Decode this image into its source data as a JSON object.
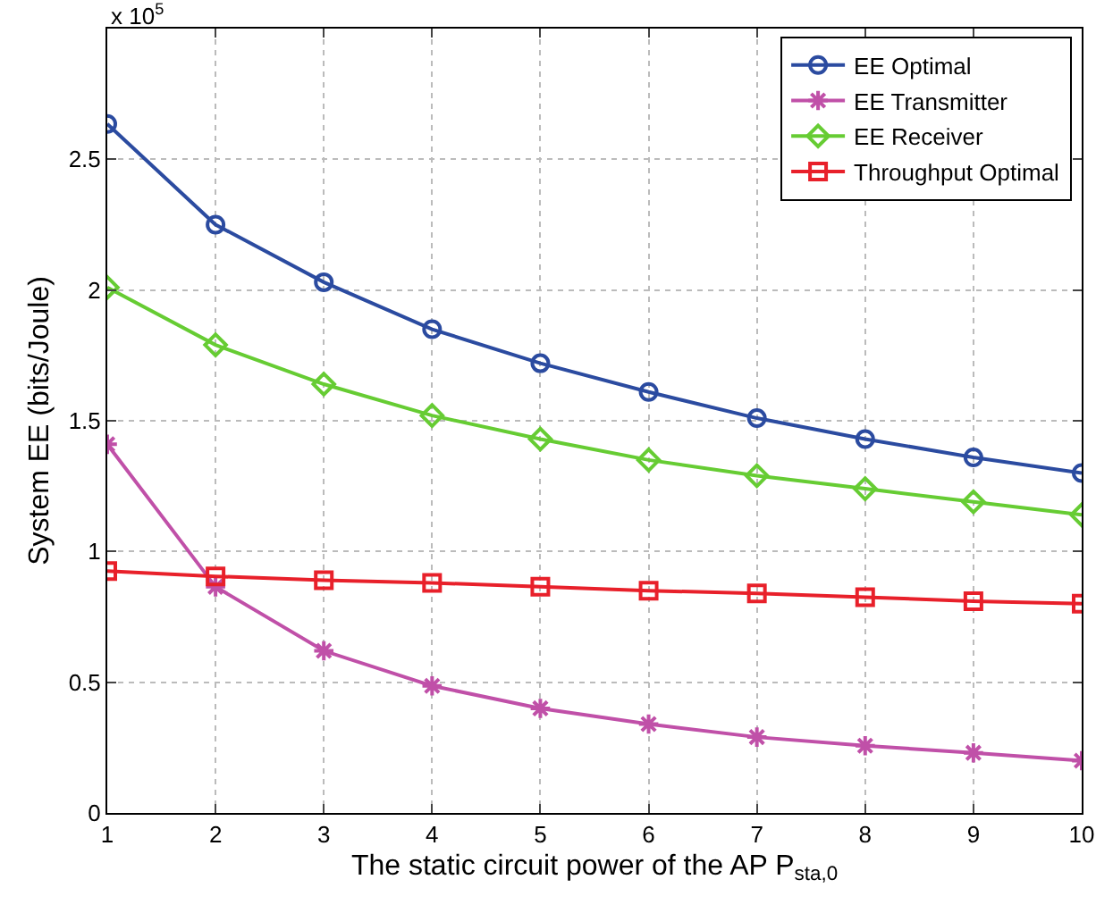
{
  "chart_data": {
    "type": "line",
    "xlabel": "The static circuit power of the AP P$_{sta,0}$",
    "ylabel": "System EE (bits/Joule)",
    "annotations": [
      "x 10$^{5}$"
    ],
    "x": [
      1,
      2,
      3,
      4,
      5,
      6,
      7,
      8,
      9,
      10
    ],
    "series": [
      {
        "name": "EE Optimal",
        "color": "#2b4ba0",
        "marker": "circle",
        "values": [
          2.635,
          2.25,
          2.03,
          1.85,
          1.72,
          1.61,
          1.51,
          1.43,
          1.36,
          1.3
        ]
      },
      {
        "name": "EE Transmitter",
        "color": "#c050a8",
        "marker": "cross",
        "values": [
          1.41,
          0.865,
          0.62,
          0.486,
          0.4,
          0.34,
          0.29,
          0.257,
          0.23,
          0.2
        ]
      },
      {
        "name": "EE Receiver",
        "color": "#66cc33",
        "marker": "diamond",
        "values": [
          2.01,
          1.79,
          1.64,
          1.52,
          1.43,
          1.35,
          1.29,
          1.24,
          1.19,
          1.14
        ]
      },
      {
        "name": "Throughput Optimal",
        "color": "#e8202a",
        "marker": "square",
        "values": [
          0.925,
          0.905,
          0.89,
          0.88,
          0.865,
          0.85,
          0.84,
          0.825,
          0.81,
          0.8
        ]
      }
    ],
    "xlim": [
      1,
      10
    ],
    "xticks": [
      1,
      2,
      3,
      4,
      5,
      6,
      7,
      8,
      9,
      10
    ],
    "ylim": [
      0,
      3
    ],
    "yticks": [
      0,
      0.5,
      1,
      1.5,
      2,
      2.5
    ],
    "grid": true,
    "legend": "top right",
    "line_style": "solid"
  }
}
